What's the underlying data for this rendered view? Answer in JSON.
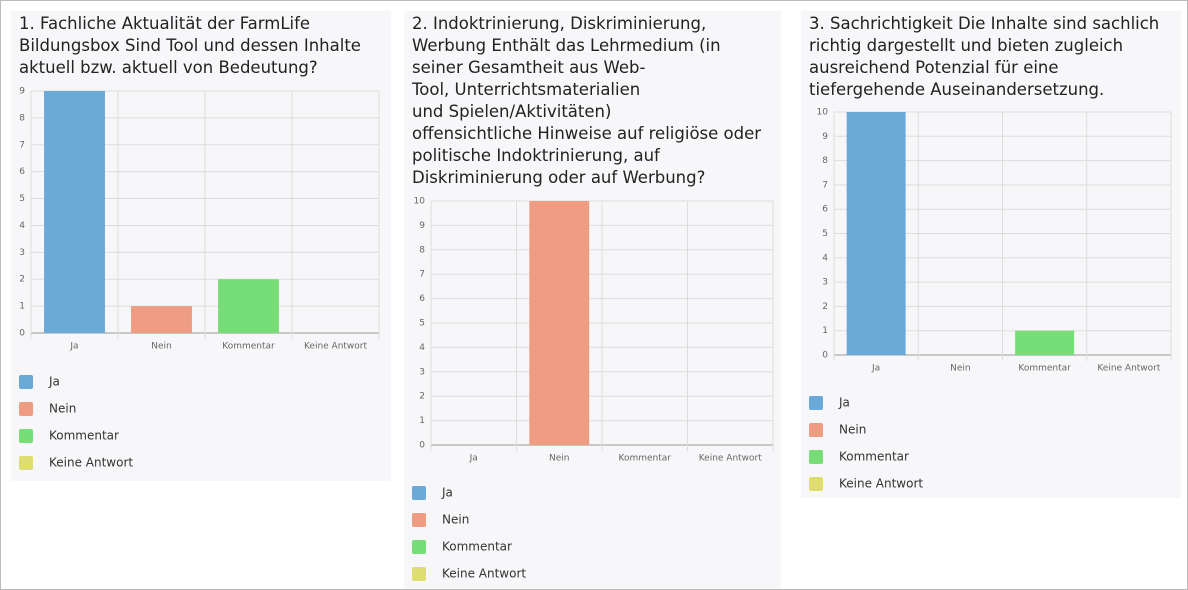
{
  "chart_data": [
    {
      "type": "bar",
      "title": "1. Fachliche Aktualität der FarmLife\nBildungsbox Sind Tool und dessen Inhalte\naktuell bzw. aktuell von Bedeutung?",
      "categories": [
        "Ja",
        "Nein",
        "Kommentar",
        "Keine Antwort"
      ],
      "values": [
        9,
        1,
        2,
        0
      ],
      "colors": [
        "#6aa9d8",
        "#ee9c82",
        "#77dd77",
        "#dede70"
      ],
      "ylim": [
        0,
        9
      ],
      "yticks": [
        0,
        1,
        2,
        3,
        4,
        5,
        6,
        7,
        8,
        9
      ],
      "grid": true
    },
    {
      "type": "bar",
      "title": "2. Indoktrinierung, Diskriminierung,\nWerbung Enthält das Lehrmedium (in\nseiner Gesamtheit aus Web-\nTool, Unterrichtsmaterialien\nund Spielen/Aktivitäten)\noffensichtliche Hinweise auf religiöse oder\npolitische Indoktrinierung, auf\nDiskriminierung oder auf Werbung?",
      "categories": [
        "Ja",
        "Nein",
        "Kommentar",
        "Keine Antwort"
      ],
      "values": [
        0,
        10,
        0,
        0
      ],
      "colors": [
        "#6aa9d8",
        "#ee9c82",
        "#77dd77",
        "#dede70"
      ],
      "ylim": [
        0,
        10
      ],
      "yticks": [
        0,
        1,
        2,
        3,
        4,
        5,
        6,
        7,
        8,
        9,
        10
      ],
      "grid": true
    },
    {
      "type": "bar",
      "title": "3. Sachrichtigkeit Die Inhalte sind sachlich\nrichtig dargestellt und bieten zugleich\nausreichend Potenzial für eine\ntiefergehende Auseinandersetzung.",
      "categories": [
        "Ja",
        "Nein",
        "Kommentar",
        "Keine Antwort"
      ],
      "values": [
        10,
        0,
        1,
        0
      ],
      "colors": [
        "#6aa9d8",
        "#ee9c82",
        "#77dd77",
        "#dede70"
      ],
      "ylim": [
        0,
        10
      ],
      "yticks": [
        0,
        1,
        2,
        3,
        4,
        5,
        6,
        7,
        8,
        9,
        10
      ],
      "grid": true
    }
  ]
}
